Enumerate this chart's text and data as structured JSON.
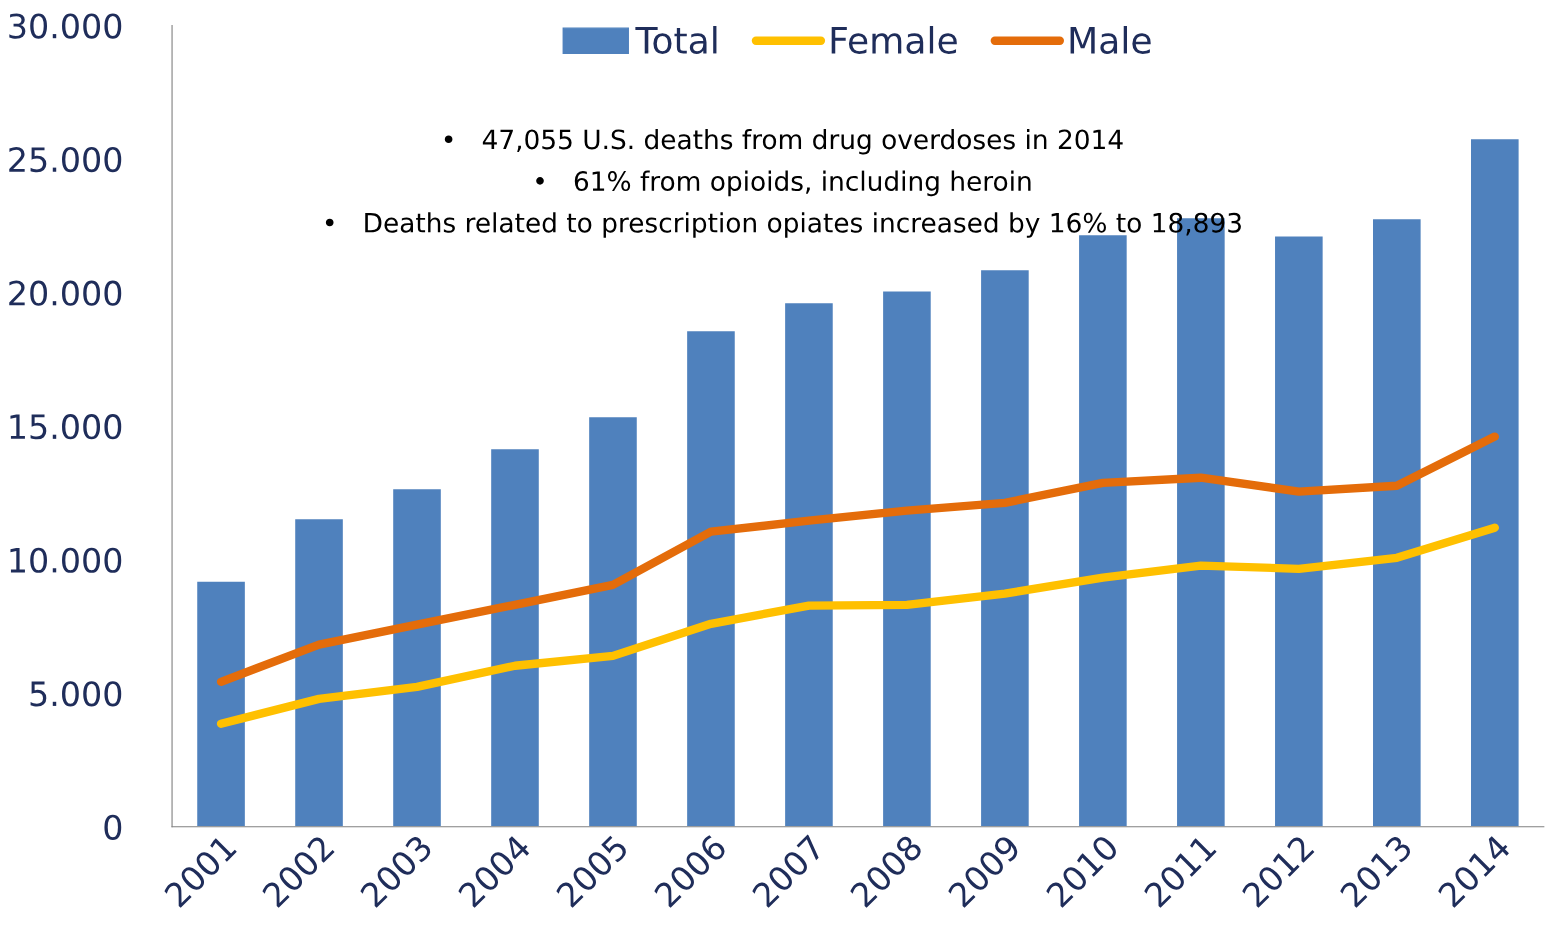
{
  "chart_data": {
    "type": "bar",
    "categories": [
      "2001",
      "2002",
      "2003",
      "2004",
      "2005",
      "2006",
      "2007",
      "2008",
      "2009",
      "2010",
      "2011",
      "2012",
      "2013",
      "2014"
    ],
    "series": [
      {
        "name": "Total",
        "color": "#4f81bd",
        "values": [
          9200,
          11540,
          12660,
          14160,
          15360,
          18580,
          19630,
          20070,
          20860,
          22170,
          22810,
          22130,
          22770,
          25770
        ]
      },
      {
        "name": "Female",
        "type": "line",
        "color": "#ffc000",
        "values": [
          3860,
          4790,
          5240,
          6030,
          6400,
          7600,
          8280,
          8310,
          8730,
          9330,
          9780,
          9660,
          10070,
          11200
        ]
      },
      {
        "name": "Male",
        "type": "line",
        "color": "#e46c0a",
        "values": [
          5430,
          6820,
          7570,
          8310,
          9060,
          11050,
          11460,
          11840,
          12130,
          12880,
          13070,
          12550,
          12770,
          14610
        ]
      }
    ],
    "ylim": [
      0,
      30000
    ],
    "yticks": [
      {
        "value": 0,
        "label": "0"
      },
      {
        "value": 5000,
        "label": "5.000"
      },
      {
        "value": 10000,
        "label": "10.000"
      },
      {
        "value": 15000,
        "label": "15.000"
      },
      {
        "value": 20000,
        "label": "20.000"
      },
      {
        "value": 25000,
        "label": "25.000"
      },
      {
        "value": 30000,
        "label": "30.000"
      }
    ],
    "annotations": [
      "•   47,055 U.S. deaths from drug overdoses in 2014",
      "•   61% from opioids, including heroin",
      "•   Deaths related to prescription opiates increased by 16% to 18,893"
    ],
    "legend": "top",
    "grid": false,
    "marker": "none",
    "line_style": "solid"
  }
}
